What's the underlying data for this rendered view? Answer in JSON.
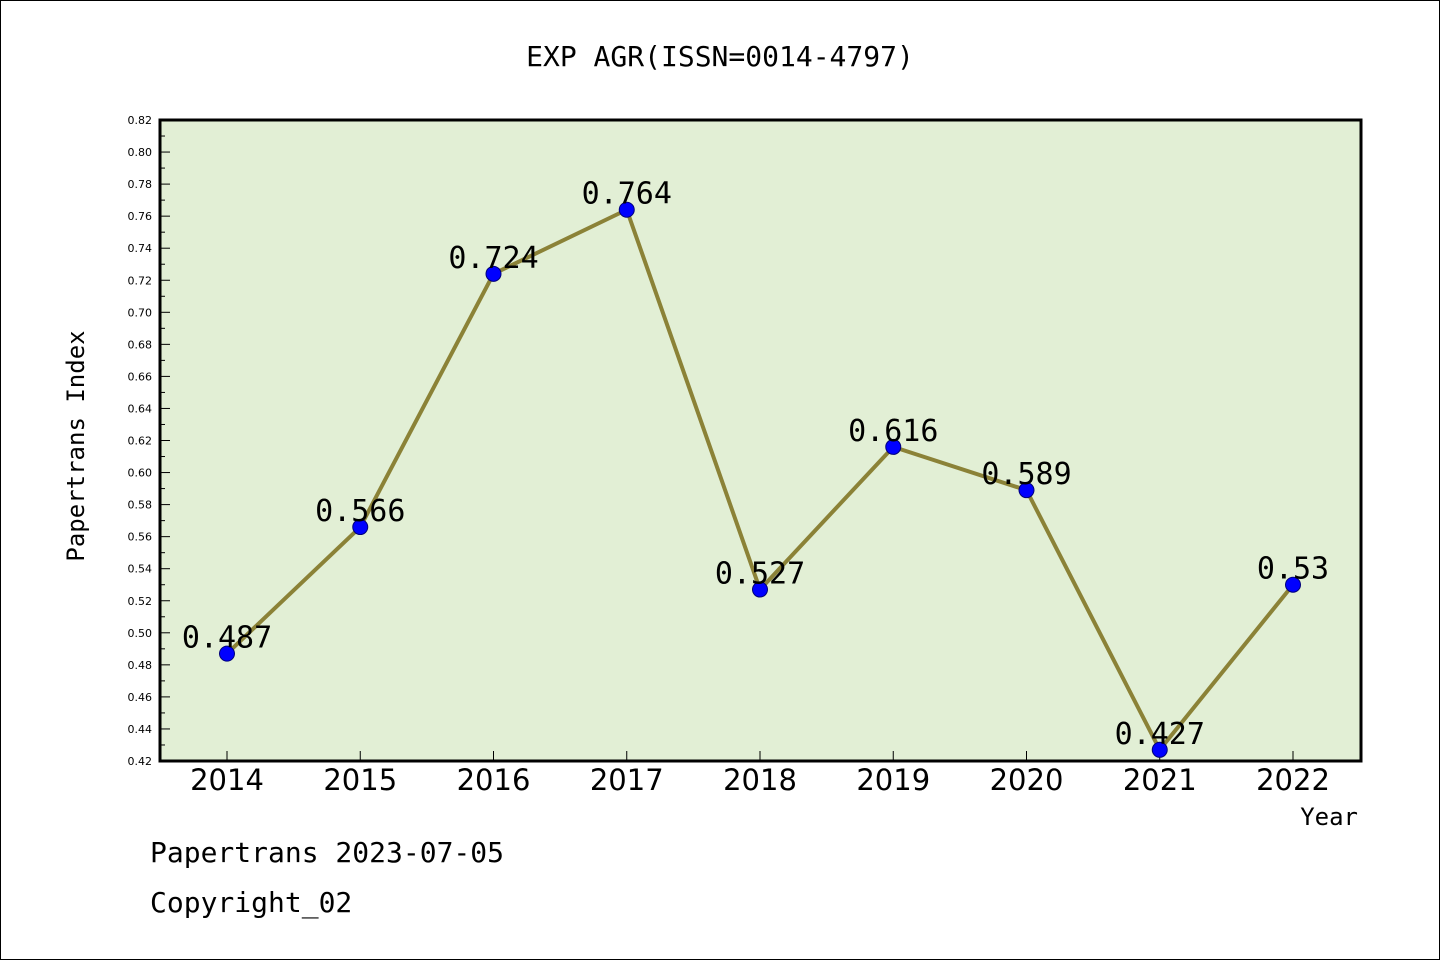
{
  "chart_data": {
    "type": "line",
    "title": "EXP AGR(ISSN=0014-4797)",
    "xlabel": "Year",
    "ylabel": "Papertrans Index",
    "categories": [
      "2014",
      "2015",
      "2016",
      "2017",
      "2018",
      "2019",
      "2020",
      "2021",
      "2022"
    ],
    "values": [
      0.487,
      0.566,
      0.724,
      0.764,
      0.527,
      0.616,
      0.589,
      0.427,
      0.53
    ],
    "data_labels": [
      "0.487",
      "0.566",
      "0.724",
      "0.764",
      "0.527",
      "0.616",
      "0.589",
      "0.427",
      "0.53"
    ],
    "ylim": [
      0.42,
      0.82
    ],
    "yticks": [
      "0.42",
      "0.44",
      "0.46",
      "0.48",
      "0.50",
      "0.52",
      "0.54",
      "0.56",
      "0.58",
      "0.60",
      "0.62",
      "0.64",
      "0.66",
      "0.68",
      "0.70",
      "0.72",
      "0.74",
      "0.76",
      "0.78",
      "0.80",
      "0.82"
    ],
    "grid": false,
    "colors": {
      "plot_background": "#e2efd5",
      "line": "#8b8237",
      "marker": "#0000ff"
    }
  },
  "footer": {
    "line1": "Papertrans 2023-07-05",
    "line2": "Copyright_02"
  }
}
